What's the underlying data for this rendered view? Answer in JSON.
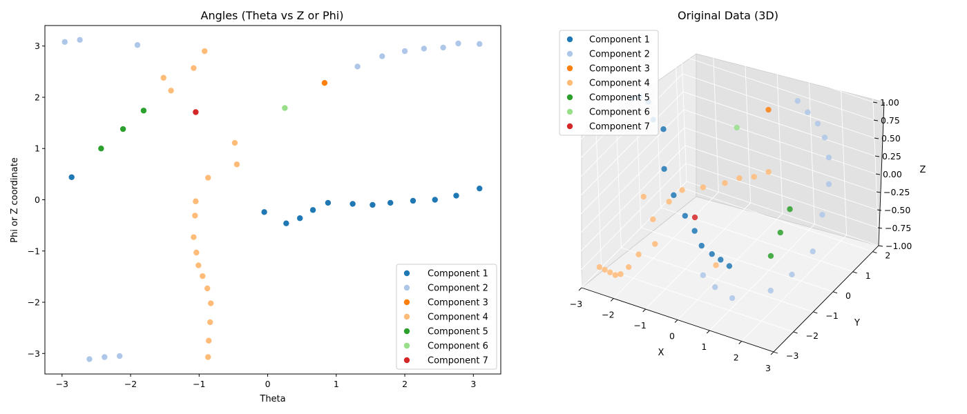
{
  "colors": {
    "Component 1": "#1f77b4",
    "Component 2": "#aec7e8",
    "Component 3": "#ff7f0e",
    "Component 4": "#ffbb78",
    "Component 5": "#2ca02c",
    "Component 6": "#98df8a",
    "Component 7": "#d62728"
  },
  "chart_data": [
    {
      "type": "scatter",
      "title": "Angles (Theta vs Z or Phi)",
      "xlabel": "Theta",
      "ylabel": "Phi or Z coordinate",
      "xlim": [
        -3.25,
        3.4
      ],
      "ylim": [
        -3.4,
        3.4
      ],
      "xticks": [
        -3,
        -2,
        -1,
        0,
        1,
        2,
        3
      ],
      "yticks": [
        -3,
        -2,
        -1,
        0,
        1,
        2,
        3
      ],
      "grid": false,
      "legend_position": "lower-right",
      "series": [
        {
          "name": "Component 1",
          "points": [
            [
              -2.86,
              0.44
            ],
            [
              -0.05,
              -0.24
            ],
            [
              0.27,
              -0.46
            ],
            [
              0.47,
              -0.36
            ],
            [
              0.66,
              -0.2
            ],
            [
              0.88,
              -0.06
            ],
            [
              1.24,
              -0.08
            ],
            [
              1.53,
              -0.1
            ],
            [
              1.79,
              -0.06
            ],
            [
              2.12,
              -0.02
            ],
            [
              2.44,
              0.0
            ],
            [
              2.75,
              0.08
            ],
            [
              3.09,
              0.22
            ]
          ]
        },
        {
          "name": "Component 2",
          "points": [
            [
              -2.96,
              3.08
            ],
            [
              -2.74,
              3.12
            ],
            [
              -1.9,
              3.02
            ],
            [
              1.31,
              2.6
            ],
            [
              1.67,
              2.8
            ],
            [
              2.0,
              2.9
            ],
            [
              2.28,
              2.95
            ],
            [
              2.56,
              2.97
            ],
            [
              2.78,
              3.05
            ],
            [
              3.09,
              3.04
            ],
            [
              -2.6,
              -3.11
            ],
            [
              -2.38,
              -3.07
            ],
            [
              -2.16,
              -3.05
            ]
          ]
        },
        {
          "name": "Component 3",
          "points": [
            [
              0.83,
              2.28
            ]
          ]
        },
        {
          "name": "Component 4",
          "points": [
            [
              -0.92,
              2.9
            ],
            [
              -1.08,
              2.57
            ],
            [
              -1.52,
              2.38
            ],
            [
              -1.41,
              2.13
            ],
            [
              -0.48,
              1.11
            ],
            [
              -0.45,
              0.69
            ],
            [
              -0.87,
              0.43
            ],
            [
              -1.05,
              -0.03
            ],
            [
              -1.06,
              -0.31
            ],
            [
              -1.08,
              -0.73
            ],
            [
              -1.04,
              -1.03
            ],
            [
              -1.01,
              -1.28
            ],
            [
              -0.95,
              -1.49
            ],
            [
              -0.88,
              -1.73
            ],
            [
              -0.83,
              -2.02
            ],
            [
              -0.84,
              -2.39
            ],
            [
              -0.86,
              -2.75
            ],
            [
              -0.87,
              -3.07
            ]
          ]
        },
        {
          "name": "Component 5",
          "points": [
            [
              -2.43,
              1.0
            ],
            [
              -2.11,
              1.38
            ],
            [
              -1.81,
              1.74
            ]
          ]
        },
        {
          "name": "Component 6",
          "points": [
            [
              0.25,
              1.79
            ]
          ]
        },
        {
          "name": "Component 7",
          "points": [
            [
              -1.05,
              1.71
            ]
          ]
        }
      ]
    },
    {
      "type": "scatter",
      "title": "Original Data (3D)",
      "xlabel": "X",
      "ylabel": "Y",
      "zlabel": "Z",
      "x_ticks": [
        -3,
        -2,
        -1,
        0,
        1,
        2,
        3
      ],
      "y_ticks": [
        -3,
        -2,
        -1,
        0,
        1,
        2
      ],
      "z_ticks": [
        "-1.00",
        "-0.75",
        "-0.50",
        "-0.25",
        "0.00",
        "0.25",
        "0.50",
        "0.75",
        "1.00"
      ],
      "grid": true,
      "legend_position": "top-left",
      "series": [
        {
          "name": "Component 1",
          "points": [
            [
              -2.8,
              -0.5,
              0.97
            ],
            [
              -2.7,
              -0.3,
              0.95
            ],
            [
              -2.55,
              -0.1,
              0.85
            ],
            [
              -2.45,
              -0.05,
              0.6
            ],
            [
              -2.3,
              0.2,
              0.42
            ],
            [
              -2.0,
              -0.3,
              0.05
            ],
            [
              -1.6,
              -0.5,
              -0.2
            ],
            [
              -1.2,
              -0.6,
              -0.4
            ],
            [
              -0.85,
              -0.7,
              -0.53
            ],
            [
              -0.55,
              -0.85,
              -0.65
            ],
            [
              -0.2,
              -0.9,
              -0.7
            ],
            [
              0.1,
              -0.95,
              -0.72
            ],
            [
              0.4,
              -1.0,
              -0.75
            ]
          ]
        },
        {
          "name": "Component 2",
          "points": [
            [
              1.2,
              1.4,
              1.0
            ],
            [
              1.7,
              1.1,
              1.0
            ],
            [
              2.2,
              0.8,
              1.0
            ],
            [
              2.6,
              0.5,
              0.95
            ],
            [
              2.9,
              0.2,
              0.8
            ],
            [
              3.0,
              0.0,
              0.5
            ],
            [
              2.95,
              -0.3,
              0.15
            ],
            [
              2.8,
              -0.6,
              -0.3
            ],
            [
              2.5,
              -1.2,
              -0.5
            ],
            [
              2.2,
              -1.8,
              -0.6
            ],
            [
              0.6,
              -2.6,
              -0.4
            ],
            [
              0.9,
              -2.5,
              -0.55
            ],
            [
              1.3,
              -2.3,
              -0.7
            ]
          ]
        },
        {
          "name": "Component 3",
          "points": [
            [
              0.2,
              1.5,
              0.7
            ]
          ]
        },
        {
          "name": "Component 4",
          "points": [
            [
              -2.1,
              -1.2,
              -0.1
            ],
            [
              -1.7,
              -1.4,
              -0.3
            ],
            [
              -1.3,
              -1.2,
              -0.05
            ],
            [
              -1.0,
              -1.0,
              0.1
            ],
            [
              -0.4,
              -0.9,
              0.2
            ],
            [
              0.1,
              -0.6,
              0.25
            ],
            [
              0.5,
              -0.5,
              0.35
            ],
            [
              0.9,
              -0.4,
              0.4
            ],
            [
              1.3,
              -0.3,
              0.5
            ],
            [
              -1.6,
              -1.5,
              -0.6
            ],
            [
              -2.0,
              -1.7,
              -0.75
            ],
            [
              -2.2,
              -1.9,
              -0.9
            ],
            [
              -2.4,
              -2.0,
              -1.0
            ],
            [
              -2.5,
              -2.1,
              -1.0
            ],
            [
              -2.6,
              -2.2,
              -0.95
            ],
            [
              -2.7,
              -2.3,
              -0.9
            ],
            [
              -2.8,
              -2.4,
              -0.85
            ],
            [
              0.5,
              -1.8,
              -0.5
            ]
          ]
        },
        {
          "name": "Component 5",
          "points": [
            [
              1.8,
              -0.1,
              0.0
            ],
            [
              1.6,
              -0.3,
              -0.3
            ],
            [
              1.4,
              -0.5,
              -0.6
            ]
          ]
        },
        {
          "name": "Component 6",
          "points": [
            [
              -0.3,
              0.7,
              0.6
            ]
          ]
        },
        {
          "name": "Component 7",
          "points": [
            [
              -0.5,
              -1.2,
              -0.15
            ]
          ]
        }
      ]
    }
  ]
}
